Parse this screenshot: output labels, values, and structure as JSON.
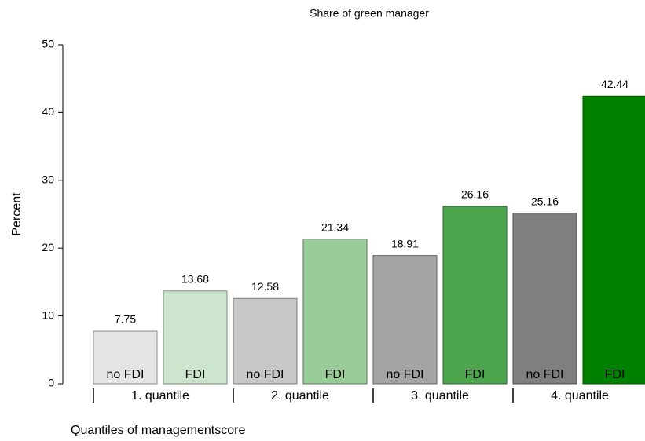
{
  "chart_data": {
    "type": "bar",
    "title": "Share of green manager",
    "y_label": "Percent",
    "x_label": "Quantiles of  managementscore",
    "categories": [
      "no FDI",
      "FDI",
      "no FDI",
      "FDI",
      "no FDI",
      "FDI",
      "no FDI",
      "FDI"
    ],
    "groups": [
      "1. quantile",
      "2. quantile",
      "3. quantile",
      "4. quantile"
    ],
    "values": [
      7.75,
      13.68,
      12.58,
      21.34,
      18.91,
      26.16,
      25.16,
      42.44
    ],
    "colors": [
      "#e5e5e5",
      "#cce5cc",
      "#c8c8c8",
      "#99cc99",
      "#a4a4a4",
      "#4da64d",
      "#7f7f7f",
      "#008000"
    ],
    "ylim": [
      0,
      50
    ],
    "yticks": [
      0,
      10,
      20,
      30,
      40,
      50
    ],
    "grid": false
  }
}
